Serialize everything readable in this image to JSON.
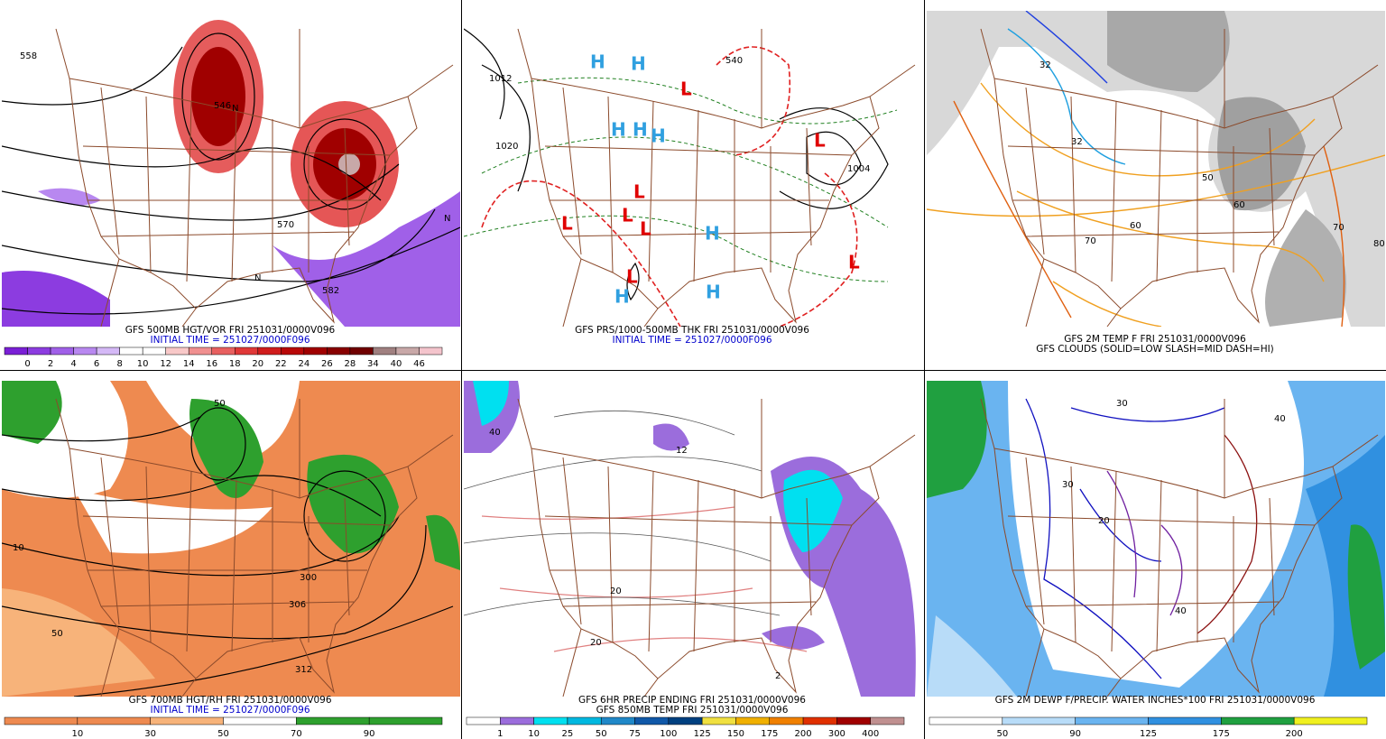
{
  "panels": [
    {
      "caption": [
        "GFS 500MB HGT/VOR FRI 251031/0000V096",
        "INITIAL TIME = 251027/0000F096"
      ],
      "caption_colors": [
        "#000000",
        "#0000cc"
      ],
      "labels": [
        "546",
        "558",
        "570",
        "582",
        "N",
        "N",
        "N"
      ],
      "colorbar": {
        "labels": [
          "0",
          "2",
          "4",
          "6",
          "8",
          "10",
          "12",
          "14",
          "16",
          "18",
          "20",
          "22",
          "24",
          "26",
          "28",
          "34",
          "40",
          "46"
        ],
        "colors": [
          "#7a1fd6",
          "#8c3ce0",
          "#a060e8",
          "#b888f0",
          "#d4b8f6",
          "#ffffff",
          "#ffffff",
          "#f8c8c8",
          "#f09090",
          "#e86060",
          "#e03838",
          "#d01c1c",
          "#b80808",
          "#a00000",
          "#880000",
          "#700000",
          "#a08080",
          "#c8a8a8",
          "#f4c4cc"
        ]
      }
    },
    {
      "caption": [
        "GFS PRS/1000-500MB THK FRI 251031/0000V096",
        "INITIAL TIME = 251027/0000F096"
      ],
      "caption_colors": [
        "#000000",
        "#0000cc"
      ],
      "labels": [
        "H",
        "H",
        "H",
        "H",
        "H",
        "H",
        "H",
        "H",
        "L",
        "L",
        "L",
        "L",
        "L",
        "L",
        "L",
        "L",
        "1020",
        "1012",
        "1004",
        "540"
      ]
    },
    {
      "caption": [
        "GFS 2M TEMP F FRI 251031/0000V096",
        "GFS CLOUDS (SOLID=LOW SLASH=MID DASH=HI)"
      ],
      "caption_colors": [
        "#000000",
        "#000000"
      ],
      "labels": [
        "32",
        "32",
        "50",
        "60",
        "70",
        "80",
        "60",
        "70"
      ]
    },
    {
      "caption": [
        "GFS 700MB HGT/RH FRI 251031/0000V096",
        "INITIAL TIME = 251027/0000F096"
      ],
      "caption_colors": [
        "#000000",
        "#0000cc"
      ],
      "labels": [
        "50",
        "10",
        "50",
        "312",
        "306",
        "300"
      ],
      "colorbar": {
        "labels": [
          "10",
          "30",
          "50",
          "70",
          "90"
        ],
        "colors": [
          "#ee8a50",
          "#ee8a50",
          "#f7b37a",
          "#ffffff",
          "#2ea02e",
          "#2ea02e"
        ]
      }
    },
    {
      "caption": [
        "GFS 6HR PRECIP ENDING FRI 251031/0000V096",
        "GFS 850MB TEMP FRI 251031/0000V096"
      ],
      "caption_colors": [
        "#000000",
        "#000000"
      ],
      "labels": [
        "40",
        "12",
        "2",
        "20",
        "20"
      ],
      "colorbar": {
        "labels": [
          "1",
          "10",
          "25",
          "50",
          "75",
          "100",
          "125",
          "150",
          "175",
          "200",
          "300",
          "400"
        ],
        "colors": [
          "#ffffff",
          "#9b6ddc",
          "#00e0f0",
          "#00b8e0",
          "#2088c8",
          "#1058a8",
          "#004080",
          "#f0e040",
          "#f0b000",
          "#f08000",
          "#e03000",
          "#a00000",
          "#c09090"
        ]
      }
    },
    {
      "caption": [
        "GFS 2M DEWP F/PRECIP. WATER INCHES*100 FRI 251031/0000V096"
      ],
      "caption_colors": [
        "#000000"
      ],
      "labels": [
        "30",
        "30",
        "40",
        "20",
        "40"
      ],
      "colorbar": {
        "labels": [
          "50",
          "90",
          "125",
          "175",
          "200"
        ],
        "colors": [
          "#ffffff",
          "#b8dcf8",
          "#6ab4f0",
          "#3090e0",
          "#20a040",
          "#f0f020"
        ]
      }
    }
  ]
}
